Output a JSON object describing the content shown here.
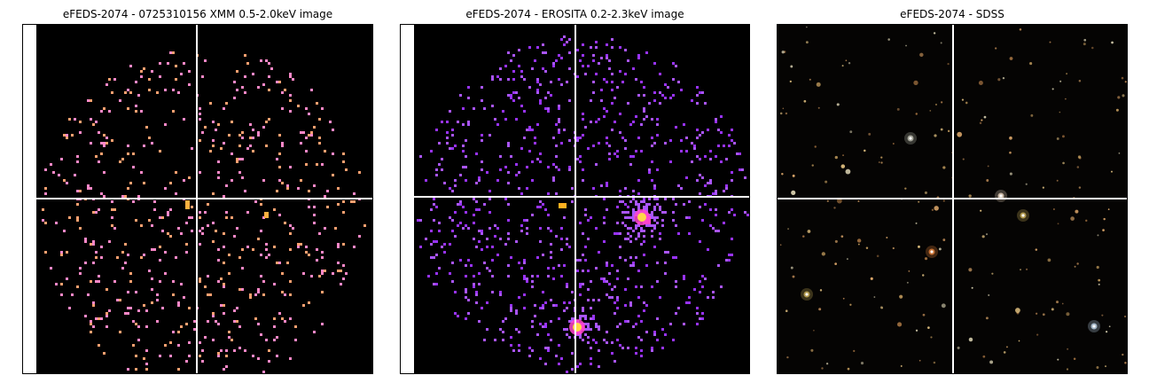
{
  "panels": [
    {
      "id": "xmm",
      "title": "eFEDS-2074 - 0725310156 XMM 0.5-2.0keV image"
    },
    {
      "id": "erosita",
      "title": "eFEDS-2074 -  EROSITA 0.2-2.3keV image"
    },
    {
      "id": "sdss",
      "title": "eFEDS-2074 - SDSS"
    }
  ],
  "colors": {
    "xmm_point": "#ff88c8",
    "xmm_point_alt": "#ffa070",
    "xmm_hot": "#ffb040",
    "erosita_point": "#9933ff",
    "erosita_point_alt": "#aa55ff",
    "erosita_mid": "#ff44cc",
    "erosita_hot": "#ffe040",
    "crosshair": "#ffffff"
  }
}
